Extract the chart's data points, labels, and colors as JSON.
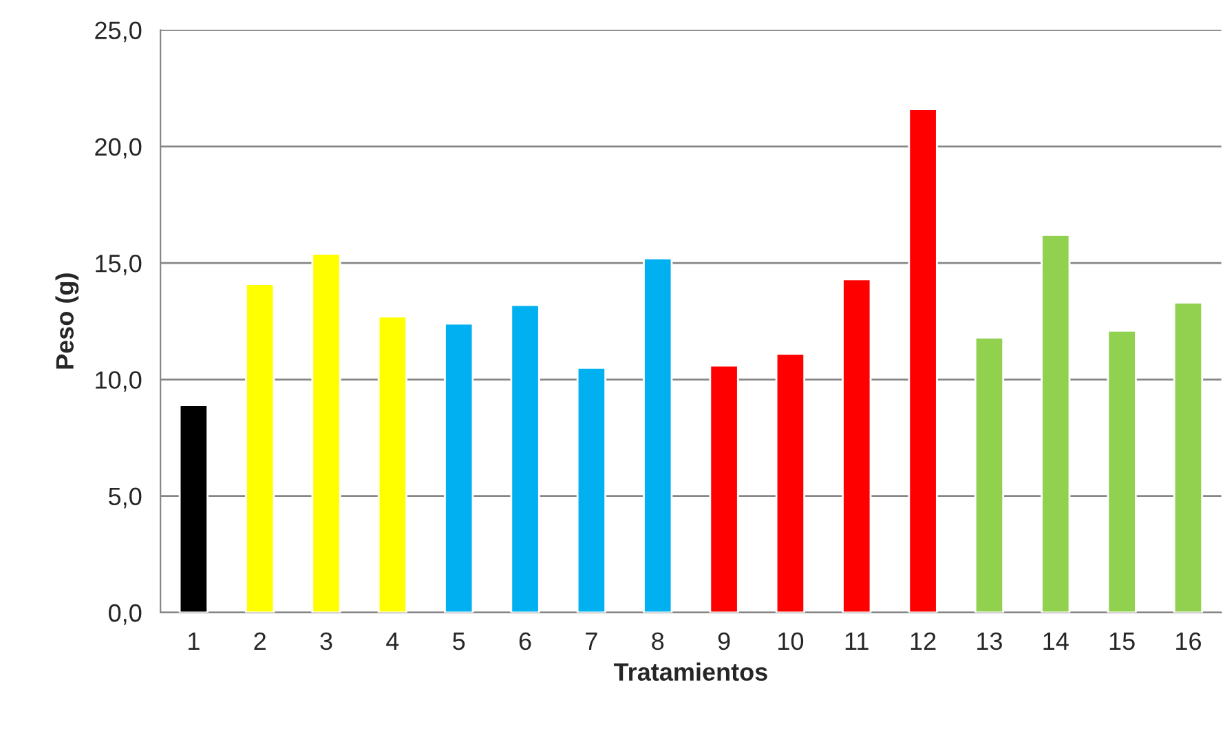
{
  "chart_data": {
    "type": "bar",
    "xlabel": "Tratamientos",
    "ylabel": "Peso (g)",
    "categories": [
      "1",
      "2",
      "3",
      "4",
      "5",
      "6",
      "7",
      "8",
      "9",
      "10",
      "11",
      "12",
      "13",
      "14",
      "15",
      "16"
    ],
    "values": [
      8.9,
      14.1,
      15.4,
      12.7,
      12.4,
      13.2,
      10.5,
      15.2,
      10.6,
      11.1,
      14.3,
      21.6,
      11.8,
      16.2,
      12.1,
      13.3
    ],
    "colors": [
      "#000000",
      "#ffff00",
      "#ffff00",
      "#ffff00",
      "#00b0f0",
      "#00b0f0",
      "#00b0f0",
      "#00b0f0",
      "#ff0000",
      "#ff0000",
      "#ff0000",
      "#ff0000",
      "#92d050",
      "#92d050",
      "#92d050",
      "#92d050"
    ],
    "ylim": [
      0,
      25
    ],
    "yticks": [
      {
        "value": 0,
        "label": "0,0"
      },
      {
        "value": 5,
        "label": "5,0"
      },
      {
        "value": 10,
        "label": "10,0"
      },
      {
        "value": 15,
        "label": "15,0"
      },
      {
        "value": 20,
        "label": "20,0"
      },
      {
        "value": 25,
        "label": "25,0"
      }
    ],
    "grid": "y",
    "legend": false
  }
}
